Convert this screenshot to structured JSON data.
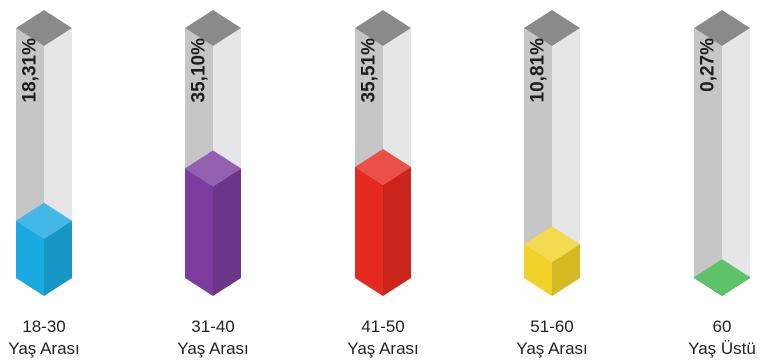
{
  "chart_data": {
    "type": "bar",
    "style": "3d-cylinders",
    "categories": [
      {
        "line1": "18-30",
        "line2": "Yaş Arası"
      },
      {
        "line1": "31-40",
        "line2": "Yaş Arası"
      },
      {
        "line1": "41-50",
        "line2": "Yaş Arası"
      },
      {
        "line1": "51-60",
        "line2": "Yaş Arası"
      },
      {
        "line1": "60",
        "line2": "Yaş Üstü"
      }
    ],
    "values": [
      18.31,
      35.1,
      35.51,
      10.81,
      0.27
    ],
    "labels": [
      "18,31%",
      "35,10%",
      "35,51%",
      "10,81%",
      "0,27%"
    ],
    "colors": [
      "#1aa9e0",
      "#7b3c9d",
      "#e52a1f",
      "#f1d22a",
      "#3bb54a"
    ],
    "legend": "none",
    "grid": false
  }
}
